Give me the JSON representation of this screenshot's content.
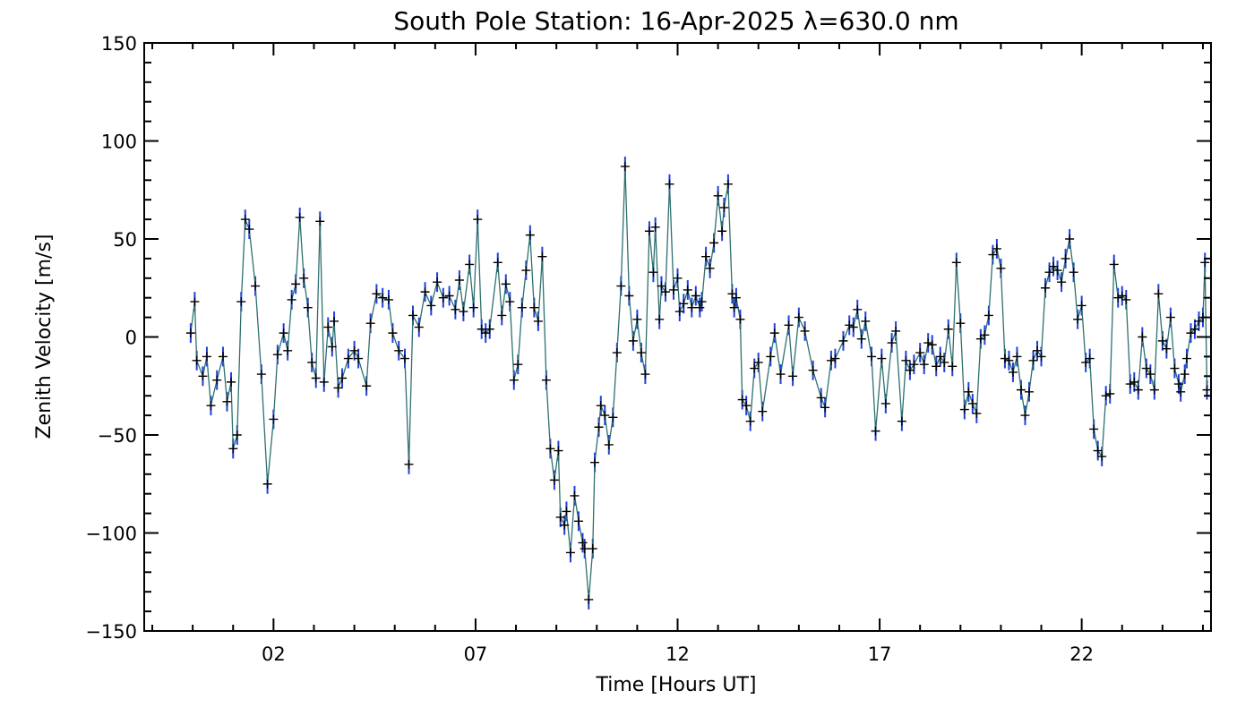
{
  "chart_data": {
    "type": "line",
    "title": "South Pole Station: 16-Apr-2025 λ=630.0 nm",
    "xlabel": "Time [Hours UT]",
    "ylabel": "Zenith Velocity [m/s]",
    "xlim": [
      -1.2,
      25.2
    ],
    "ylim": [
      -150,
      150
    ],
    "xticks": [
      2,
      7,
      12,
      17,
      22
    ],
    "xtick_labels": [
      "02",
      "07",
      "12",
      "17",
      "22"
    ],
    "yticks": [
      -150,
      -100,
      -50,
      0,
      50,
      100,
      150
    ],
    "ytick_labels": [
      "−150",
      "−100",
      "−50",
      "0",
      "50",
      "100",
      "150"
    ],
    "grid": false,
    "series": [
      {
        "name": "Zenith velocity",
        "line_color": "#2f6f6f",
        "errorbar_color": "#1f3fe0",
        "marker": "+",
        "points": [
          [
            -0.05,
            2
          ],
          [
            0.05,
            18
          ],
          [
            0.1,
            -12
          ],
          [
            0.25,
            -20
          ],
          [
            0.35,
            -10
          ],
          [
            0.45,
            -35
          ],
          [
            0.6,
            -22
          ],
          [
            0.75,
            -10
          ],
          [
            0.85,
            -33
          ],
          [
            0.95,
            -23
          ],
          [
            1.0,
            -57
          ],
          [
            1.1,
            -50
          ],
          [
            1.2,
            18
          ],
          [
            1.3,
            60
          ],
          [
            1.4,
            55
          ],
          [
            1.55,
            26
          ],
          [
            1.7,
            -19
          ],
          [
            1.85,
            -75
          ],
          [
            2.0,
            -42
          ],
          [
            2.1,
            -9
          ],
          [
            2.25,
            2
          ],
          [
            2.35,
            -7
          ],
          [
            2.45,
            19
          ],
          [
            2.55,
            27
          ],
          [
            2.65,
            61
          ],
          [
            2.75,
            30
          ],
          [
            2.85,
            15
          ],
          [
            2.95,
            -13
          ],
          [
            3.05,
            -21
          ],
          [
            3.15,
            59
          ],
          [
            3.25,
            -23
          ],
          [
            3.35,
            5
          ],
          [
            3.45,
            -5
          ],
          [
            3.5,
            8
          ],
          [
            3.6,
            -26
          ],
          [
            3.7,
            -21
          ],
          [
            3.85,
            -11
          ],
          [
            4.0,
            -7
          ],
          [
            4.1,
            -11
          ],
          [
            4.3,
            -25
          ],
          [
            4.4,
            7
          ],
          [
            4.55,
            22
          ],
          [
            4.7,
            20
          ],
          [
            4.85,
            19
          ],
          [
            4.95,
            2
          ],
          [
            5.1,
            -7
          ],
          [
            5.25,
            -11
          ],
          [
            5.35,
            -65
          ],
          [
            5.45,
            11
          ],
          [
            5.6,
            5
          ],
          [
            5.75,
            23
          ],
          [
            5.9,
            16
          ],
          [
            6.05,
            28
          ],
          [
            6.2,
            20
          ],
          [
            6.35,
            21
          ],
          [
            6.5,
            14
          ],
          [
            6.6,
            29
          ],
          [
            6.7,
            13
          ],
          [
            6.85,
            37
          ],
          [
            6.95,
            15
          ],
          [
            7.05,
            60
          ],
          [
            7.15,
            4
          ],
          [
            7.25,
            2
          ],
          [
            7.35,
            4
          ],
          [
            7.55,
            38
          ],
          [
            7.65,
            11
          ],
          [
            7.75,
            27
          ],
          [
            7.85,
            18
          ],
          [
            7.95,
            -22
          ],
          [
            8.05,
            -14
          ],
          [
            8.15,
            15
          ],
          [
            8.25,
            34
          ],
          [
            8.35,
            52
          ],
          [
            8.45,
            15
          ],
          [
            8.55,
            8
          ],
          [
            8.65,
            41
          ],
          [
            8.75,
            -22
          ],
          [
            8.85,
            -57
          ],
          [
            8.95,
            -73
          ],
          [
            9.05,
            -58
          ],
          [
            9.1,
            -92
          ],
          [
            9.2,
            -96
          ],
          [
            9.25,
            -89
          ],
          [
            9.35,
            -110
          ],
          [
            9.45,
            -81
          ],
          [
            9.55,
            -94
          ],
          [
            9.65,
            -105
          ],
          [
            9.7,
            -108
          ],
          [
            9.8,
            -134
          ],
          [
            9.9,
            -108
          ],
          [
            9.95,
            -64
          ],
          [
            10.05,
            -46
          ],
          [
            10.1,
            -35
          ],
          [
            10.2,
            -40
          ],
          [
            10.3,
            -55
          ],
          [
            10.4,
            -41
          ],
          [
            10.5,
            -8
          ],
          [
            10.6,
            26
          ],
          [
            10.7,
            87
          ],
          [
            10.8,
            21
          ],
          [
            10.9,
            -2
          ],
          [
            11.0,
            9
          ],
          [
            11.1,
            -8
          ],
          [
            11.2,
            -19
          ],
          [
            11.3,
            54
          ],
          [
            11.4,
            33
          ],
          [
            11.45,
            56
          ],
          [
            11.55,
            9
          ],
          [
            11.6,
            26
          ],
          [
            11.7,
            23
          ],
          [
            11.8,
            78
          ],
          [
            11.9,
            24
          ],
          [
            12.0,
            30
          ],
          [
            12.05,
            13
          ],
          [
            12.15,
            17
          ],
          [
            12.25,
            24
          ],
          [
            12.35,
            15
          ],
          [
            12.45,
            21
          ],
          [
            12.55,
            15
          ],
          [
            12.6,
            18
          ],
          [
            12.7,
            41
          ],
          [
            12.8,
            35
          ],
          [
            12.9,
            48
          ],
          [
            13.0,
            72
          ],
          [
            13.1,
            54
          ],
          [
            13.15,
            66
          ],
          [
            13.25,
            78
          ],
          [
            13.35,
            22
          ],
          [
            13.4,
            15
          ],
          [
            13.45,
            20
          ],
          [
            13.55,
            9
          ],
          [
            13.6,
            -32
          ],
          [
            13.7,
            -35
          ],
          [
            13.8,
            -43
          ],
          [
            13.9,
            -16
          ],
          [
            14.0,
            -13
          ],
          [
            14.1,
            -38
          ],
          [
            14.3,
            -10
          ],
          [
            14.4,
            2
          ],
          [
            14.55,
            -19
          ],
          [
            14.75,
            6
          ],
          [
            14.85,
            -20
          ],
          [
            15.0,
            10
          ],
          [
            15.15,
            3
          ],
          [
            15.35,
            -17
          ],
          [
            15.55,
            -31
          ],
          [
            15.65,
            -36
          ],
          [
            15.8,
            -12
          ],
          [
            15.9,
            -11
          ],
          [
            16.1,
            -2
          ],
          [
            16.25,
            6
          ],
          [
            16.35,
            5
          ],
          [
            16.45,
            14
          ],
          [
            16.55,
            -1
          ],
          [
            16.65,
            8
          ],
          [
            16.8,
            -10
          ],
          [
            16.9,
            -48
          ],
          [
            17.05,
            -11
          ],
          [
            17.15,
            -34
          ],
          [
            17.3,
            -3
          ],
          [
            17.4,
            3
          ],
          [
            17.55,
            -43
          ],
          [
            17.65,
            -12
          ],
          [
            17.75,
            -17
          ],
          [
            17.85,
            -14
          ],
          [
            18.0,
            -8
          ],
          [
            18.1,
            -14
          ],
          [
            18.2,
            -3
          ],
          [
            18.3,
            -4
          ],
          [
            18.4,
            -15
          ],
          [
            18.5,
            -10
          ],
          [
            18.6,
            -13
          ],
          [
            18.7,
            4
          ],
          [
            18.8,
            -15
          ],
          [
            18.9,
            38
          ],
          [
            19.0,
            7
          ],
          [
            19.1,
            -37
          ],
          [
            19.2,
            -28
          ],
          [
            19.3,
            -34
          ],
          [
            19.4,
            -39
          ],
          [
            19.5,
            -1
          ],
          [
            19.6,
            1
          ],
          [
            19.7,
            11
          ],
          [
            19.8,
            42
          ],
          [
            19.9,
            45
          ],
          [
            20.0,
            35
          ],
          [
            20.1,
            -11
          ],
          [
            20.2,
            -12
          ],
          [
            20.3,
            -18
          ],
          [
            20.4,
            -10
          ],
          [
            20.5,
            -27
          ],
          [
            20.6,
            -40
          ],
          [
            20.7,
            -28
          ],
          [
            20.8,
            -12
          ],
          [
            20.9,
            -7
          ],
          [
            21.0,
            -10
          ],
          [
            21.1,
            25
          ],
          [
            21.2,
            33
          ],
          [
            21.3,
            36
          ],
          [
            21.4,
            34
          ],
          [
            21.5,
            28
          ],
          [
            21.6,
            40
          ],
          [
            21.7,
            50
          ],
          [
            21.8,
            33
          ],
          [
            21.9,
            9
          ],
          [
            22.0,
            16
          ],
          [
            22.1,
            -13
          ],
          [
            22.2,
            -11
          ],
          [
            22.3,
            -47
          ],
          [
            22.4,
            -58
          ],
          [
            22.5,
            -61
          ],
          [
            22.6,
            -30
          ],
          [
            22.7,
            -29
          ],
          [
            22.8,
            37
          ],
          [
            22.9,
            20
          ],
          [
            23.0,
            21
          ],
          [
            23.1,
            19
          ],
          [
            23.2,
            -24
          ],
          [
            23.3,
            -23
          ],
          [
            23.4,
            -27
          ],
          [
            23.5,
            0
          ],
          [
            23.6,
            -16
          ],
          [
            23.7,
            -19
          ],
          [
            23.8,
            -27
          ],
          [
            23.9,
            22
          ],
          [
            24.0,
            -2
          ],
          [
            24.1,
            -6
          ],
          [
            24.2,
            10
          ],
          [
            24.3,
            -16
          ],
          [
            24.4,
            -24
          ],
          [
            24.45,
            -28
          ],
          [
            24.55,
            -19
          ],
          [
            24.6,
            -11
          ],
          [
            24.7,
            2
          ],
          [
            24.8,
            4
          ],
          [
            24.9,
            8
          ],
          [
            25.0,
            10
          ],
          [
            25.05,
            38
          ],
          [
            25.1,
            -27
          ]
        ]
      }
    ]
  }
}
